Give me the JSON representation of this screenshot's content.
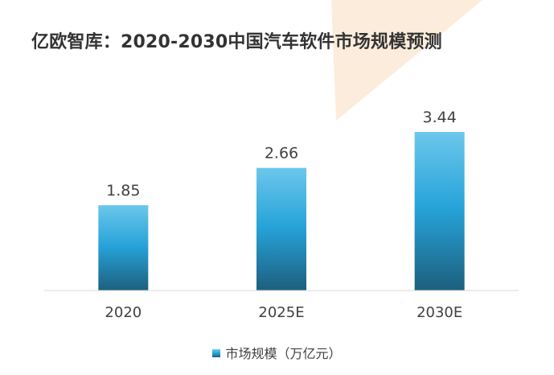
{
  "chart_data": {
    "type": "bar",
    "title": "亿欧智库：2020-2030中国汽车软件市场规模预测",
    "categories": [
      "2020",
      "2025E",
      "2030E"
    ],
    "series": [
      {
        "name": "市场规模（万亿元）",
        "values": [
          1.85,
          2.66,
          3.44
        ]
      }
    ],
    "data_labels": [
      "1.85",
      "2.66",
      "3.44"
    ],
    "xlabel": "",
    "ylabel": "",
    "ylim": [
      0,
      3.6
    ],
    "grid": false,
    "legend_position": "bottom",
    "colors": {
      "bar_top": "#6cc7eb",
      "bar_mid": "#26a3d9",
      "bar_bottom": "#1d5f7e",
      "accent_deco": "#fcecdc",
      "axis_line": "#d9d9d9",
      "label_text": "#404040"
    }
  }
}
